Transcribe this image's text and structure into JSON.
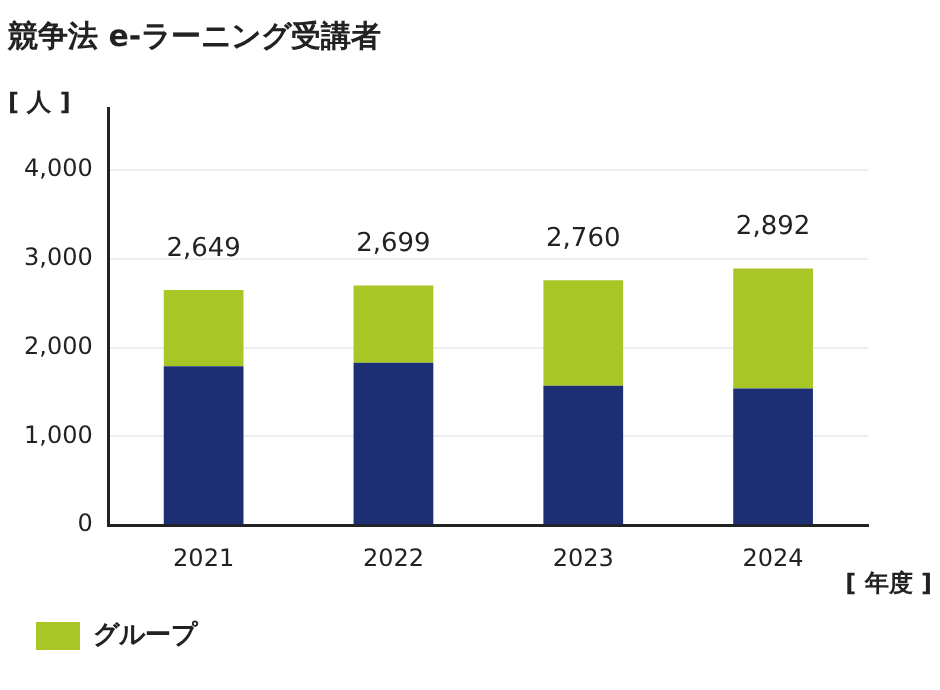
{
  "chart_data": {
    "type": "bar",
    "title": "競争法 e-ラーニング受講者",
    "ylabel": "[ 人 ]",
    "xlabel": "[ 年度 ]",
    "categories": [
      "2021",
      "2022",
      "2023",
      "2024"
    ],
    "series": [
      {
        "color": "#1c2e74",
        "values": [
          1790,
          1830,
          1570,
          1540
        ]
      },
      {
        "name": "グループ",
        "color": "#a8c626",
        "values": [
          859,
          869,
          1190,
          1352
        ]
      }
    ],
    "stacked": true,
    "totals": [
      "2,649",
      "2,699",
      "2,760",
      "2,892"
    ],
    "ylim": [
      0,
      4700
    ],
    "yticks": [
      {
        "value": 0,
        "label": "0"
      },
      {
        "value": 1000,
        "label": "1,000"
      },
      {
        "value": 2000,
        "label": "2,000"
      },
      {
        "value": 3000,
        "label": "3,000"
      },
      {
        "value": 4000,
        "label": "4,000"
      }
    ],
    "grid": "y",
    "legend": "bottom left"
  }
}
